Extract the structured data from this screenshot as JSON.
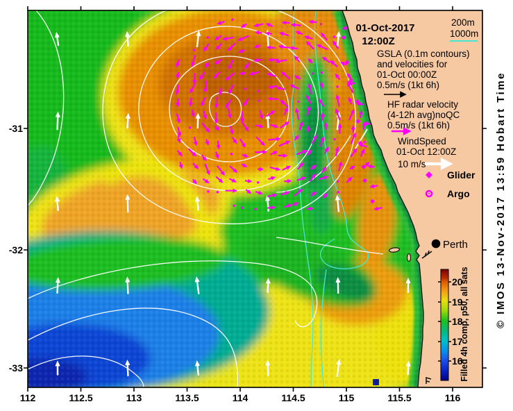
{
  "header": {
    "date": "01-Oct-2017",
    "time": "12:00Z"
  },
  "legend": {
    "depth_200": "200m",
    "depth_1000": "1000m",
    "gsla": [
      "GSLA (0.1m contours)",
      "and velocities for",
      "01-Oct 00:00Z",
      "0.5m/s (1kt 6h)"
    ],
    "hf": [
      "HF radar velocity",
      "(4-12h avg)noQC",
      "0.5m/s (1kt 6h)"
    ],
    "wind": [
      "WindSpeed",
      "01-Oct 12:00Z"
    ],
    "wind_scale": "10 m/s",
    "glider": "Glider",
    "argo": "Argo"
  },
  "map": {
    "city": "Perth"
  },
  "axes": {
    "x": [
      "112",
      "112.5",
      "113",
      "113.5",
      "114",
      "114.5",
      "115",
      "115.5",
      "116"
    ],
    "y": [
      "-31",
      "-32",
      "-33"
    ]
  },
  "colorbar": {
    "ticks": [
      "20",
      "19",
      "18",
      "17",
      "16"
    ],
    "label": "Filled 4h comp, p50, all sats"
  },
  "credit": "© IMOS 13-Nov-2017 13:59 Hobart Time",
  "colors": {
    "land": "#F6C9A3",
    "hf_vector": "#FF00FF",
    "wind_arrow": "#FFFFFF",
    "gsla_contour": "#FFFFFF",
    "bathy_contour": "#45E8D2",
    "sea_base": "#1CBE24"
  }
}
